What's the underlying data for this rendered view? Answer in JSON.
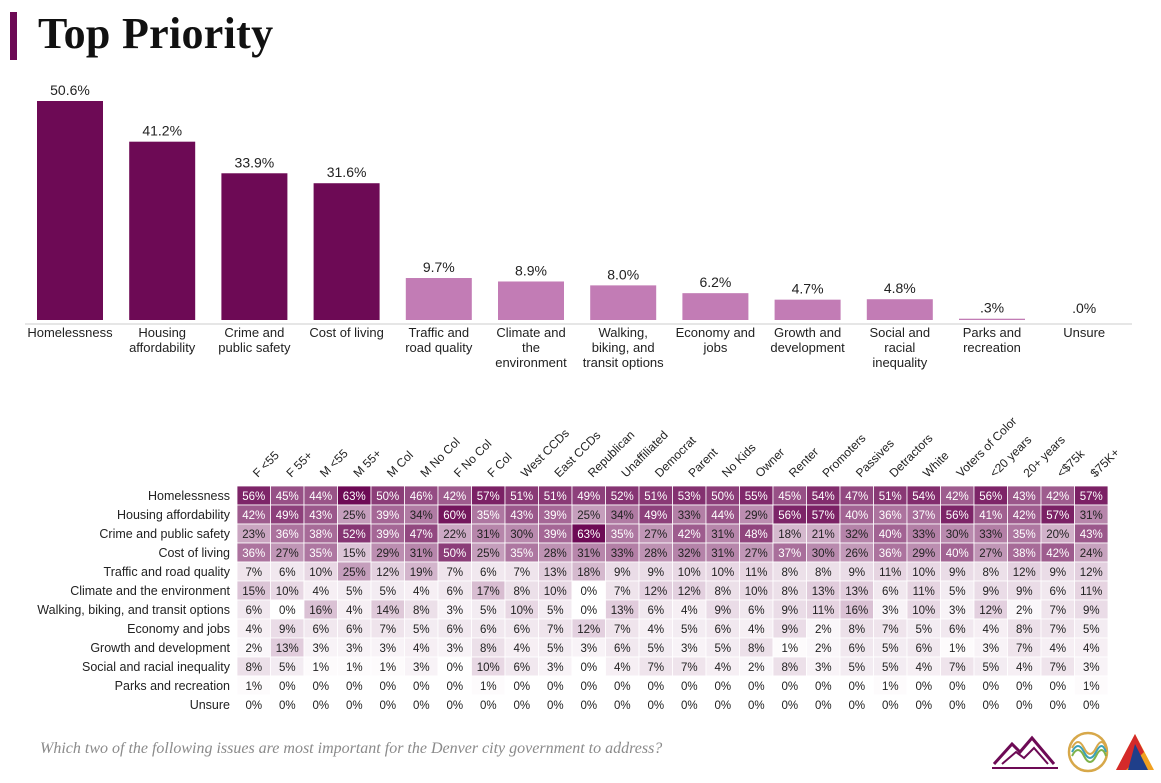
{
  "page": {
    "title": "Top Priority",
    "question": "Which two of the following issues are most important for the Denver city government to address?"
  },
  "colors": {
    "accent": "#6d0a55",
    "bar_dark": "#6d0a55",
    "bar_light": "#c27cb5",
    "heat_high": "#6d0a55",
    "heat_low": "#ffffff"
  },
  "chart_data": [
    {
      "type": "bar",
      "categories": [
        "Homelessness",
        "Housing affordability",
        "Crime and public safety",
        "Cost of living",
        "Traffic and road quality",
        "Climate and the environment",
        "Walking, biking, and transit options",
        "Economy and jobs",
        "Growth and development",
        "Social and racial inequality",
        "Parks and recreation",
        "Unsure"
      ],
      "category_lines": [
        [
          "Homelessness"
        ],
        [
          "Housing",
          "affordability"
        ],
        [
          "Crime and",
          "public safety"
        ],
        [
          "Cost of living"
        ],
        [
          "Traffic and",
          "road quality"
        ],
        [
          "Climate and",
          "the",
          "environment"
        ],
        [
          "Walking,",
          "biking, and",
          "transit options"
        ],
        [
          "Economy and",
          "jobs"
        ],
        [
          "Growth and",
          "development"
        ],
        [
          "Social and",
          "racial",
          "inequality"
        ],
        [
          "Parks and",
          "recreation"
        ],
        [
          "Unsure"
        ]
      ],
      "values": [
        50.6,
        41.2,
        33.9,
        31.6,
        9.7,
        8.9,
        8.0,
        6.2,
        4.7,
        4.8,
        0.3,
        0.0
      ],
      "value_labels": [
        "50.6%",
        "41.2%",
        "33.9%",
        "31.6%",
        "9.7%",
        "8.9%",
        "8.0%",
        "6.2%",
        "4.7%",
        "4.8%",
        ".3%",
        ".0%"
      ],
      "highlight_top": 4,
      "ylim": [
        0,
        50.6
      ]
    },
    {
      "type": "heatmap",
      "columns": [
        "F <55",
        "F 55+",
        "M <55",
        "M 55+",
        "M Col",
        "M No Col",
        "F No Col",
        "F Col",
        "West CCDs",
        "East CCDs",
        "Republican",
        "Unaffiliated",
        "Democrat",
        "Parent",
        "No Kids",
        "Owner",
        "Renter",
        "Promoters",
        "Passives",
        "Detractors",
        "White",
        "Voters of Color",
        "<20 years",
        "20+ years",
        "<$75k",
        "$75K+"
      ],
      "rows": [
        "Homelessness",
        "Housing affordability",
        "Crime and public safety",
        "Cost of living",
        "Traffic and road quality",
        "Climate and the environment",
        "Walking, biking, and transit options",
        "Economy and jobs",
        "Growth and development",
        "Social and racial inequality",
        "Parks and recreation",
        "Unsure"
      ],
      "values": [
        [
          56,
          45,
          44,
          63,
          50,
          46,
          42,
          57,
          51,
          51,
          49,
          52,
          51,
          53,
          50,
          55,
          45,
          54,
          47,
          51,
          54,
          42,
          56,
          43,
          42,
          57
        ],
        [
          42,
          49,
          43,
          25,
          39,
          34,
          60,
          35,
          43,
          39,
          25,
          34,
          49,
          33,
          44,
          29,
          56,
          57,
          40,
          36,
          37,
          56,
          41,
          42,
          57,
          31
        ],
        [
          23,
          36,
          38,
          52,
          39,
          47,
          22,
          31,
          30,
          39,
          63,
          35,
          27,
          42,
          31,
          48,
          18,
          21,
          32,
          40,
          33,
          30,
          33,
          35,
          20,
          43
        ],
        [
          36,
          27,
          35,
          15,
          29,
          31,
          50,
          25,
          35,
          28,
          31,
          33,
          28,
          32,
          31,
          27,
          37,
          30,
          26,
          36,
          29,
          40,
          27,
          38,
          42,
          24
        ],
        [
          7,
          6,
          10,
          25,
          12,
          19,
          7,
          6,
          7,
          13,
          18,
          9,
          9,
          10,
          10,
          11,
          8,
          8,
          9,
          11,
          10,
          9,
          8,
          12,
          9,
          12
        ],
        [
          15,
          10,
          4,
          5,
          5,
          4,
          6,
          17,
          8,
          10,
          0,
          7,
          12,
          12,
          8,
          10,
          8,
          13,
          13,
          6,
          11,
          5,
          9,
          9,
          6,
          11
        ],
        [
          6,
          0,
          16,
          4,
          14,
          8,
          3,
          5,
          10,
          5,
          0,
          13,
          6,
          4,
          9,
          6,
          9,
          11,
          16,
          3,
          10,
          3,
          12,
          2,
          7,
          9
        ],
        [
          4,
          9,
          6,
          6,
          7,
          5,
          6,
          6,
          6,
          7,
          12,
          7,
          4,
          5,
          6,
          4,
          9,
          2,
          8,
          7,
          5,
          6,
          4,
          8,
          7,
          5
        ],
        [
          2,
          13,
          3,
          3,
          3,
          4,
          3,
          8,
          4,
          5,
          3,
          6,
          5,
          3,
          5,
          8,
          1,
          2,
          6,
          5,
          6,
          1,
          3,
          7,
          4,
          4
        ],
        [
          8,
          5,
          1,
          1,
          1,
          3,
          0,
          10,
          6,
          3,
          0,
          4,
          7,
          7,
          4,
          2,
          8,
          3,
          5,
          5,
          4,
          7,
          5,
          4,
          7,
          3
        ],
        [
          1,
          0,
          0,
          0,
          0,
          0,
          0,
          1,
          0,
          0,
          0,
          0,
          0,
          0,
          0,
          0,
          0,
          0,
          0,
          1,
          0,
          0,
          0,
          0,
          0,
          1
        ],
        [
          0,
          0,
          0,
          0,
          0,
          0,
          0,
          0,
          0,
          0,
          0,
          0,
          0,
          0,
          0,
          0,
          0,
          0,
          0,
          0,
          0,
          0,
          0,
          0,
          0,
          0
        ]
      ],
      "value_suffix": "%",
      "scale": [
        0,
        63
      ]
    }
  ],
  "logos": [
    "mountains-logo",
    "wave-circle-logo",
    "triangle-logo"
  ]
}
